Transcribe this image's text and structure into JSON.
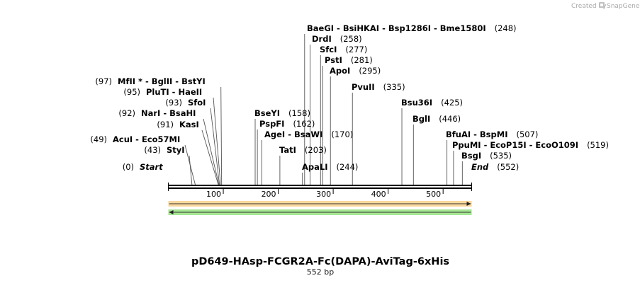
{
  "credit": {
    "prefix": "Created by",
    "brand": "SnapGene"
  },
  "plasmid": {
    "name": "pD649-HAsp-FCGR2A-Fc(DAPA)-AviTag-6xHis",
    "length_label": "552 bp",
    "length": 552
  },
  "ticks": [
    "100",
    "200",
    "300",
    "400",
    "500"
  ],
  "tick_values": [
    100,
    200,
    300,
    400,
    500
  ],
  "features": [
    {
      "name": "forward-orf",
      "direction": "forward",
      "start": 1,
      "end": 552,
      "color": "#f5b84c"
    },
    {
      "name": "reverse-orf",
      "direction": "reverse",
      "start": 1,
      "end": 552,
      "color": "#5cd33a"
    }
  ],
  "sites": [
    {
      "pos": 0,
      "label": "Start",
      "num": "(0)",
      "italic": true,
      "side": "left"
    },
    {
      "pos": 43,
      "label": "StyI",
      "num": "(43)",
      "side": "left"
    },
    {
      "pos": 49,
      "label": "AcuI - Eco57MI",
      "num": "(49)",
      "side": "left"
    },
    {
      "pos": 91,
      "label": "KasI",
      "num": "(91)",
      "side": "left"
    },
    {
      "pos": 92,
      "label": "NarI - BsaHI",
      "num": "(92)",
      "side": "left"
    },
    {
      "pos": 93,
      "label": "SfoI",
      "num": "(93)",
      "side": "left"
    },
    {
      "pos": 95,
      "label": "PluTI - HaeII",
      "num": "(95)",
      "side": "left"
    },
    {
      "pos": 97,
      "label": "MfII * - BglII - BstYI",
      "num": "(97)",
      "side": "left"
    },
    {
      "pos": 158,
      "label": "BseYI",
      "num": "(158)",
      "side": "right"
    },
    {
      "pos": 162,
      "label": "PspFI",
      "num": "(162)",
      "side": "right"
    },
    {
      "pos": 170,
      "label": "AgeI - BsaWI",
      "num": "(170)",
      "side": "right"
    },
    {
      "pos": 203,
      "label": "TatI",
      "num": "(203)",
      "side": "right"
    },
    {
      "pos": 244,
      "label": "ApaLI",
      "num": "(244)",
      "side": "right"
    },
    {
      "pos": 248,
      "label": "BaeGI - BsiHKAI - Bsp1286I - Bme1580I",
      "num": "(248)",
      "side": "right"
    },
    {
      "pos": 258,
      "label": "DrdI",
      "num": "(258)",
      "side": "right"
    },
    {
      "pos": 277,
      "label": "SfcI",
      "num": "(277)",
      "side": "right"
    },
    {
      "pos": 281,
      "label": "PstI",
      "num": "(281)",
      "side": "right"
    },
    {
      "pos": 295,
      "label": "ApoI",
      "num": "(295)",
      "side": "right"
    },
    {
      "pos": 335,
      "label": "PvuII",
      "num": "(335)",
      "side": "right"
    },
    {
      "pos": 425,
      "label": "Bsu36I",
      "num": "(425)",
      "side": "right"
    },
    {
      "pos": 446,
      "label": "BglI",
      "num": "(446)",
      "side": "right"
    },
    {
      "pos": 507,
      "label": "BfuAI - BspMI",
      "num": "(507)",
      "side": "right"
    },
    {
      "pos": 519,
      "label": "PpuMI - EcoP15I - EcoO109I",
      "num": "(519)",
      "side": "right"
    },
    {
      "pos": 535,
      "label": "BsgI",
      "num": "(535)",
      "side": "right"
    },
    {
      "pos": 552,
      "label": "End",
      "num": "(552)",
      "italic": true,
      "side": "right"
    }
  ]
}
